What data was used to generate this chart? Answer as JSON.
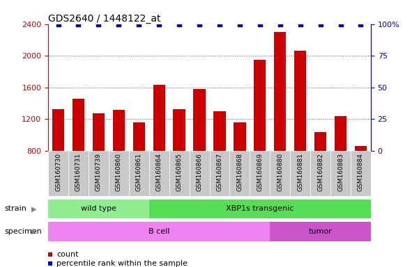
{
  "title": "GDS2640 / 1448122_at",
  "samples": [
    "GSM160730",
    "GSM160731",
    "GSM160739",
    "GSM160860",
    "GSM160861",
    "GSM160864",
    "GSM160865",
    "GSM160866",
    "GSM160867",
    "GSM160868",
    "GSM160869",
    "GSM160880",
    "GSM160881",
    "GSM160882",
    "GSM160883",
    "GSM160884"
  ],
  "counts": [
    1330,
    1460,
    1270,
    1320,
    1155,
    1630,
    1330,
    1580,
    1300,
    1155,
    1950,
    2300,
    2060,
    1040,
    1240,
    860
  ],
  "bar_color": "#cc0000",
  "dot_color": "#0000cc",
  "ylim_left": [
    800,
    2400
  ],
  "ylim_right": [
    0,
    100
  ],
  "yticks_left": [
    800,
    1200,
    1600,
    2000,
    2400
  ],
  "yticks_right": [
    0,
    25,
    50,
    75,
    100
  ],
  "ytick_right_labels": [
    "0",
    "25",
    "50",
    "75",
    "100%"
  ],
  "strain_groups": [
    {
      "label": "wild type",
      "start": 0,
      "end": 5,
      "color": "#90ee90"
    },
    {
      "label": "XBP1s transgenic",
      "start": 5,
      "end": 16,
      "color": "#55dd55"
    }
  ],
  "specimen_groups": [
    {
      "label": "B cell",
      "start": 0,
      "end": 11,
      "color": "#ee82ee"
    },
    {
      "label": "tumor",
      "start": 11,
      "end": 16,
      "color": "#cc55cc"
    }
  ],
  "tick_bg_color": "#c8c8c8",
  "grid_color": "#606060",
  "bg_color": "#ffffff",
  "legend_count_color": "#cc0000",
  "legend_pct_color": "#0000cc",
  "dot_size": 25
}
